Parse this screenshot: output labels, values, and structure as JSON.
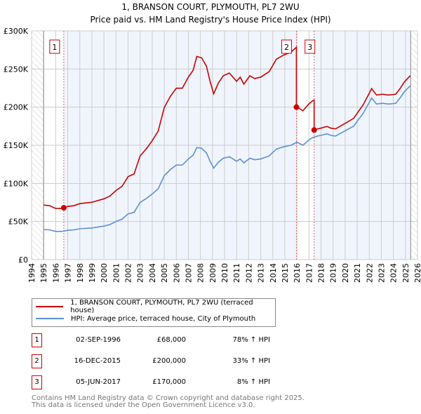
{
  "chart_data": {
    "type": "line",
    "title": "1, BRANSON COURT, PLYMOUTH, PL7 2WU",
    "subtitle": "Price paid vs. HM Land Registry's House Price Index (HPI)",
    "xlim": [
      1994,
      2026
    ],
    "ylim": [
      0,
      300000
    ],
    "x_ticks": [
      1994,
      1995,
      1996,
      1997,
      1998,
      1999,
      2000,
      2001,
      2002,
      2003,
      2004,
      2005,
      2006,
      2007,
      2008,
      2009,
      2010,
      2011,
      2012,
      2013,
      2014,
      2015,
      2016,
      2017,
      2018,
      2019,
      2020,
      2021,
      2022,
      2023,
      2024,
      2025,
      2026
    ],
    "y_ticks": [
      {
        "value": 0,
        "label": "£0"
      },
      {
        "value": 50000,
        "label": "£50K"
      },
      {
        "value": 100000,
        "label": "£100K"
      },
      {
        "value": 150000,
        "label": "£150K"
      },
      {
        "value": 200000,
        "label": "£200K"
      },
      {
        "value": 250000,
        "label": "£250K"
      },
      {
        "value": 300000,
        "label": "£300K"
      }
    ],
    "hatched_ranges": [
      [
        1994,
        1995
      ],
      [
        2025.43,
        2026
      ]
    ],
    "grid": true,
    "series": [
      {
        "name": "1, BRANSON COURT, PLYMOUTH, PL7 2WU (terraced house)",
        "color": "#cc0000",
        "derived_from_hpi_and_sales": true
      },
      {
        "name": "HPI: Average price, terraced house, City of Plymouth",
        "color": "#5b8fd4",
        "x": [
          1995,
          1995.5,
          1996,
          1996.5,
          1997,
          1997.5,
          1998,
          1999,
          2000,
          2000.5,
          2001,
          2001.5,
          2002,
          2002.5,
          2003,
          2003.5,
          2004,
          2004.5,
          2005,
          2005.5,
          2006,
          2006.5,
          2007,
          2007.4,
          2007.7,
          2008.1,
          2008.5,
          2008.8,
          2009.1,
          2009.5,
          2009.9,
          2010.4,
          2010.8,
          2011,
          2011.3,
          2011.6,
          2012.1,
          2012.5,
          2013,
          2013.7,
          2014.3,
          2014.9,
          2015.5,
          2016,
          2016.5,
          2017,
          2017.3,
          2017.7,
          2018,
          2018.5,
          2018.8,
          2019.2,
          2019.9,
          2020.7,
          2021.5,
          2022.2,
          2022.6,
          2023.1,
          2023.6,
          2024.2,
          2024.6,
          2024.9,
          2025.4
        ],
        "y": [
          39500,
          39000,
          37000,
          37000,
          38500,
          39000,
          40500,
          41500,
          44000,
          46000,
          50000,
          53000,
          60000,
          62000,
          75000,
          80000,
          86000,
          93000,
          110000,
          118000,
          124000,
          124000,
          132000,
          137000,
          147000,
          146000,
          140000,
          129000,
          120000,
          128000,
          133000,
          135000,
          131000,
          129000,
          132000,
          127000,
          133000,
          131000,
          132000,
          136000,
          145000,
          148000,
          150000,
          154000,
          150000,
          157000,
          160000,
          162000,
          163000,
          165000,
          163000,
          162000,
          168000,
          175000,
          192000,
          212000,
          204000,
          205000,
          204000,
          205000,
          213000,
          220000,
          228000
        ]
      }
    ],
    "sales": [
      {
        "n": "1",
        "x": 1996.67,
        "price": 68000,
        "date": "02-SEP-1996",
        "price_label": "£68,000",
        "pct_label": "78% ↑ HPI"
      },
      {
        "n": "2",
        "x": 2015.96,
        "price": 200000,
        "date": "16-DEC-2015",
        "price_label": "£200,000",
        "pct_label": "33% ↑ HPI"
      },
      {
        "n": "3",
        "x": 2017.43,
        "price": 170000,
        "date": "05-JUN-2017",
        "price_label": "£170,000",
        "pct_label": "8% ↑ HPI"
      }
    ]
  },
  "legend": {
    "property": "1, BRANSON COURT, PLYMOUTH, PL7 2WU (terraced house)",
    "hpi": "HPI: Average price, terraced house, City of Plymouth"
  },
  "footer": {
    "line1": "Contains HM Land Registry data © Crown copyright and database right 2025.",
    "line2": "This data is licensed under the Open Government Licence v3.0."
  }
}
